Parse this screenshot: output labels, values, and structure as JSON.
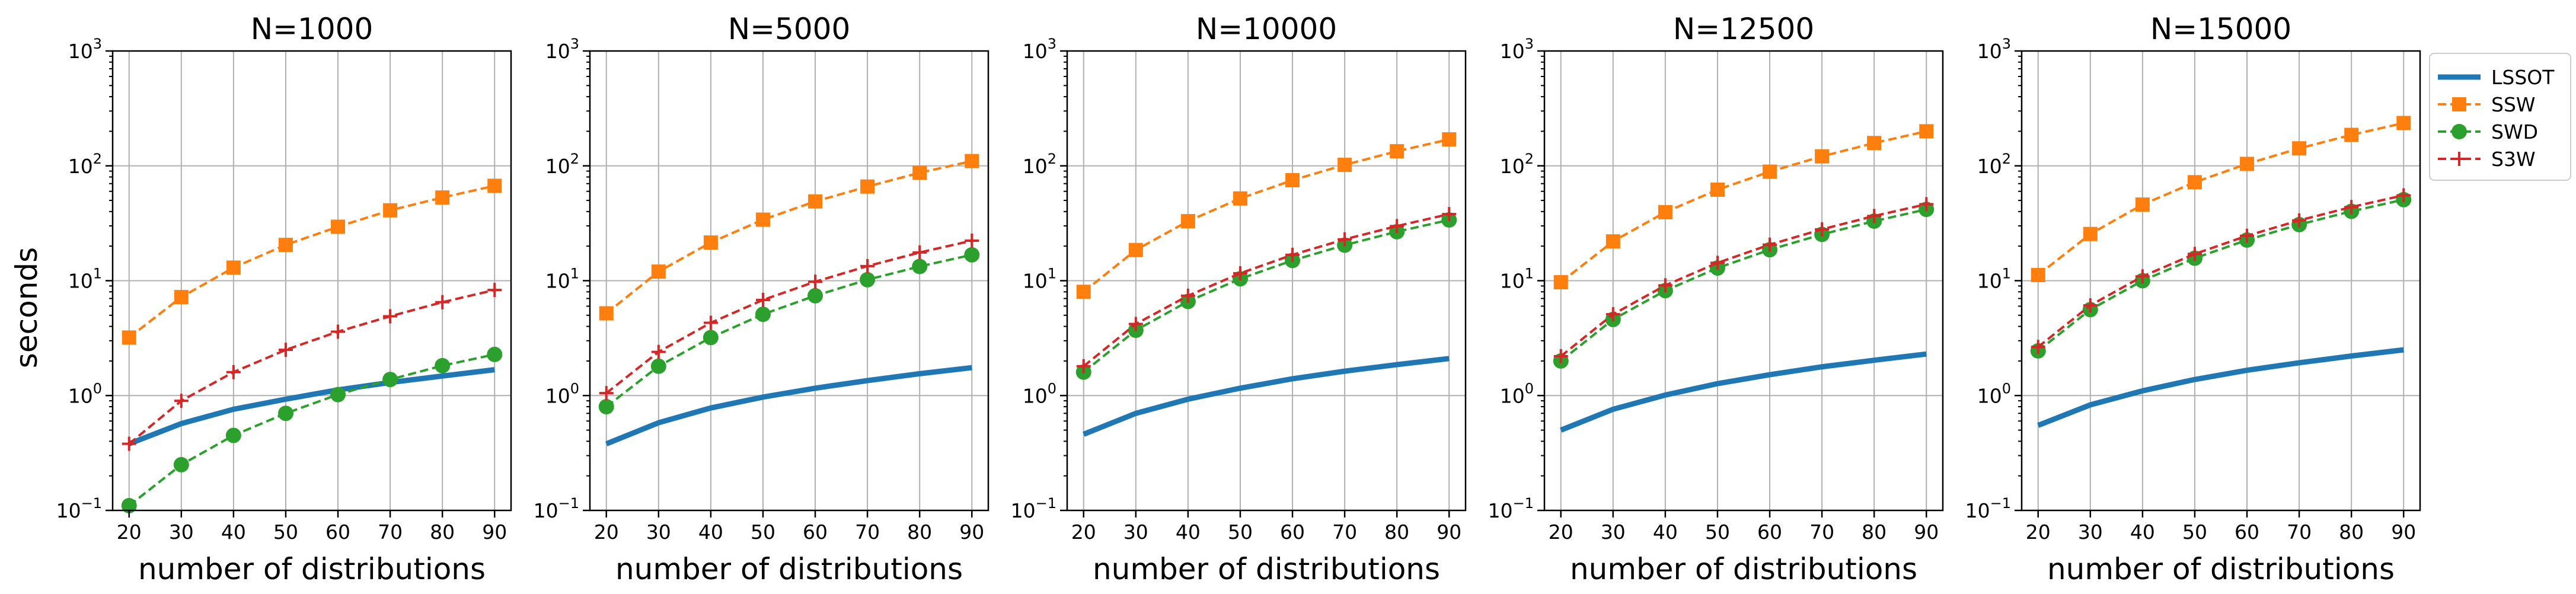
{
  "figure": {
    "ylabel": "seconds",
    "xlabel": "number of distributions"
  },
  "legend": {
    "placement": "right",
    "entries": [
      {
        "name": "LSSOT",
        "color": "#1f77b4",
        "style": "solid",
        "marker": "none"
      },
      {
        "name": "SSW",
        "color": "#ff7f0e",
        "style": "dashed",
        "marker": "square"
      },
      {
        "name": "SWD",
        "color": "#2ca02c",
        "style": "dashed",
        "marker": "circle"
      },
      {
        "name": "S3W",
        "color": "#d62728",
        "style": "dashed",
        "marker": "plus"
      }
    ]
  },
  "chart_data": [
    {
      "type": "line",
      "title": "N=1000",
      "x": [
        20,
        30,
        40,
        50,
        60,
        70,
        80,
        90
      ],
      "xticks": [
        "20",
        "30",
        "40",
        "50",
        "60",
        "70",
        "80",
        "90"
      ],
      "ylim": [
        0.1,
        1000
      ],
      "yscale": "log",
      "yticks": [
        {
          "base": "10",
          "exp": "−1"
        },
        {
          "base": "10",
          "exp": "0"
        },
        {
          "base": "10",
          "exp": "1"
        },
        {
          "base": "10",
          "exp": "2"
        },
        {
          "base": "10",
          "exp": "3"
        }
      ],
      "grid": true,
      "series": [
        {
          "name": "LSSOT",
          "values": [
            0.38,
            0.57,
            0.76,
            0.93,
            1.12,
            1.3,
            1.48,
            1.68
          ]
        },
        {
          "name": "SSW",
          "values": [
            3.2,
            7.2,
            13.0,
            20.5,
            29.5,
            41.0,
            53.0,
            67.0
          ]
        },
        {
          "name": "SWD",
          "values": [
            0.11,
            0.25,
            0.45,
            0.7,
            1.02,
            1.38,
            1.82,
            2.28
          ]
        },
        {
          "name": "S3W",
          "values": [
            0.38,
            0.9,
            1.6,
            2.5,
            3.6,
            4.9,
            6.5,
            8.3
          ]
        }
      ]
    },
    {
      "type": "line",
      "title": "N=5000",
      "x": [
        20,
        30,
        40,
        50,
        60,
        70,
        80,
        90
      ],
      "xticks": [
        "20",
        "30",
        "40",
        "50",
        "60",
        "70",
        "80",
        "90"
      ],
      "ylim": [
        0.1,
        1000
      ],
      "yscale": "log",
      "yticks": [
        {
          "base": "10",
          "exp": "−1"
        },
        {
          "base": "10",
          "exp": "0"
        },
        {
          "base": "10",
          "exp": "1"
        },
        {
          "base": "10",
          "exp": "2"
        },
        {
          "base": "10",
          "exp": "3"
        }
      ],
      "grid": true,
      "series": [
        {
          "name": "LSSOT",
          "values": [
            0.38,
            0.58,
            0.78,
            0.97,
            1.16,
            1.35,
            1.55,
            1.75
          ]
        },
        {
          "name": "SSW",
          "values": [
            5.2,
            12.0,
            21.5,
            34.0,
            49.0,
            66.0,
            87.0,
            110.0
          ]
        },
        {
          "name": "SWD",
          "values": [
            0.8,
            1.8,
            3.2,
            5.1,
            7.4,
            10.2,
            13.3,
            16.8
          ]
        },
        {
          "name": "S3W",
          "values": [
            1.05,
            2.4,
            4.3,
            6.8,
            9.8,
            13.4,
            17.6,
            22.3
          ]
        }
      ]
    },
    {
      "type": "line",
      "title": "N=10000",
      "x": [
        20,
        30,
        40,
        50,
        60,
        70,
        80,
        90
      ],
      "xticks": [
        "20",
        "30",
        "40",
        "50",
        "60",
        "70",
        "80",
        "90"
      ],
      "ylim": [
        0.1,
        1000
      ],
      "yscale": "log",
      "yticks": [
        {
          "base": "10",
          "exp": "−1"
        },
        {
          "base": "10",
          "exp": "0"
        },
        {
          "base": "10",
          "exp": "1"
        },
        {
          "base": "10",
          "exp": "2"
        },
        {
          "base": "10",
          "exp": "3"
        }
      ],
      "grid": true,
      "series": [
        {
          "name": "LSSOT",
          "values": [
            0.46,
            0.7,
            0.93,
            1.16,
            1.4,
            1.63,
            1.86,
            2.1
          ]
        },
        {
          "name": "SSW",
          "values": [
            8.0,
            18.5,
            33.0,
            52.0,
            75.0,
            102.0,
            134.0,
            170.0
          ]
        },
        {
          "name": "SWD",
          "values": [
            1.6,
            3.7,
            6.6,
            10.4,
            15.0,
            20.4,
            26.7,
            33.8
          ]
        },
        {
          "name": "S3W",
          "values": [
            1.8,
            4.2,
            7.4,
            11.6,
            16.8,
            22.9,
            29.9,
            38.0
          ]
        }
      ]
    },
    {
      "type": "line",
      "title": "N=12500",
      "x": [
        20,
        30,
        40,
        50,
        60,
        70,
        80,
        90
      ],
      "xticks": [
        "20",
        "30",
        "40",
        "50",
        "60",
        "70",
        "80",
        "90"
      ],
      "ylim": [
        0.1,
        1000
      ],
      "yscale": "log",
      "yticks": [
        {
          "base": "10",
          "exp": "−1"
        },
        {
          "base": "10",
          "exp": "0"
        },
        {
          "base": "10",
          "exp": "1"
        },
        {
          "base": "10",
          "exp": "2"
        },
        {
          "base": "10",
          "exp": "3"
        }
      ],
      "grid": true,
      "series": [
        {
          "name": "LSSOT",
          "values": [
            0.5,
            0.76,
            1.01,
            1.27,
            1.52,
            1.78,
            2.03,
            2.3
          ]
        },
        {
          "name": "SSW",
          "values": [
            9.7,
            22.0,
            39.5,
            62.0,
            89.0,
            121.0,
            158.0,
            200.0
          ]
        },
        {
          "name": "SWD",
          "values": [
            2.0,
            4.6,
            8.2,
            12.9,
            18.6,
            25.3,
            33.0,
            41.8
          ]
        },
        {
          "name": "S3W",
          "values": [
            2.2,
            5.1,
            9.1,
            14.3,
            20.6,
            28.0,
            36.6,
            46.3
          ]
        }
      ]
    },
    {
      "type": "line",
      "title": "N=15000",
      "x": [
        20,
        30,
        40,
        50,
        60,
        70,
        80,
        90
      ],
      "xticks": [
        "20",
        "30",
        "40",
        "50",
        "60",
        "70",
        "80",
        "90"
      ],
      "ylim": [
        0.1,
        1000
      ],
      "yscale": "log",
      "yticks": [
        {
          "base": "10",
          "exp": "−1"
        },
        {
          "base": "10",
          "exp": "0"
        },
        {
          "base": "10",
          "exp": "1"
        },
        {
          "base": "10",
          "exp": "2"
        },
        {
          "base": "10",
          "exp": "3"
        }
      ],
      "grid": true,
      "series": [
        {
          "name": "LSSOT",
          "values": [
            0.55,
            0.83,
            1.1,
            1.38,
            1.66,
            1.93,
            2.21,
            2.5
          ]
        },
        {
          "name": "SSW",
          "values": [
            11.2,
            25.5,
            46.0,
            72.0,
            104.0,
            142.0,
            186.0,
            236.0
          ]
        },
        {
          "name": "SWD",
          "values": [
            2.45,
            5.6,
            10.0,
            15.7,
            22.6,
            30.8,
            40.2,
            50.8
          ]
        },
        {
          "name": "S3W",
          "values": [
            2.65,
            6.1,
            10.9,
            17.1,
            24.6,
            33.5,
            43.8,
            55.4
          ]
        }
      ]
    }
  ]
}
